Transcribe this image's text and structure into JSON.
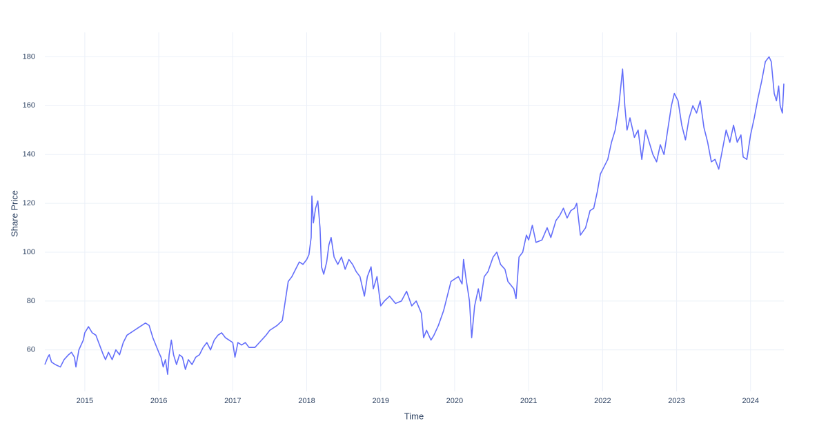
{
  "chart_data": {
    "type": "line",
    "x_label": "Time",
    "y_label": "Share Price",
    "xlim": [
      2014.46,
      2024.45
    ],
    "ylim": [
      43,
      190
    ],
    "xticks": [
      2015,
      2016,
      2017,
      2018,
      2019,
      2020,
      2021,
      2022,
      2023,
      2024
    ],
    "yticks": [
      60,
      80,
      100,
      120,
      140,
      160,
      180
    ],
    "grid": true,
    "series": [
      {
        "color": "#636efa",
        "x": [
          2014.46,
          2014.5,
          2014.52,
          2014.55,
          2014.6,
          2014.67,
          2014.72,
          2014.78,
          2014.82,
          2014.86,
          2014.88,
          2014.92,
          2014.98,
          2015.0,
          2015.05,
          2015.1,
          2015.15,
          2015.2,
          2015.25,
          2015.28,
          2015.32,
          2015.37,
          2015.42,
          2015.47,
          2015.52,
          2015.57,
          2015.62,
          2015.67,
          2015.72,
          2015.77,
          2015.82,
          2015.87,
          2015.92,
          2015.96,
          2016.0,
          2016.03,
          2016.06,
          2016.09,
          2016.12,
          2016.14,
          2016.17,
          2016.2,
          2016.24,
          2016.28,
          2016.32,
          2016.36,
          2016.4,
          2016.45,
          2016.5,
          2016.55,
          2016.6,
          2016.65,
          2016.7,
          2016.75,
          2016.8,
          2016.85,
          2016.9,
          2016.95,
          2017.0,
          2017.03,
          2017.07,
          2017.12,
          2017.17,
          2017.22,
          2017.3,
          2017.36,
          2017.45,
          2017.5,
          2017.6,
          2017.67,
          2017.7,
          2017.75,
          2017.8,
          2017.85,
          2017.9,
          2017.95,
          2018.0,
          2018.03,
          2018.06,
          2018.07,
          2018.09,
          2018.12,
          2018.15,
          2018.18,
          2018.2,
          2018.23,
          2018.27,
          2018.3,
          2018.33,
          2018.37,
          2018.42,
          2018.47,
          2018.52,
          2018.57,
          2018.62,
          2018.67,
          2018.72,
          2018.78,
          2018.82,
          2018.87,
          2018.9,
          2018.95,
          2019.0,
          2019.05,
          2019.12,
          2019.2,
          2019.28,
          2019.35,
          2019.42,
          2019.48,
          2019.55,
          2019.58,
          2019.62,
          2019.68,
          2019.72,
          2019.78,
          2019.85,
          2019.9,
          2019.95,
          2020.0,
          2020.05,
          2020.1,
          2020.12,
          2020.15,
          2020.2,
          2020.23,
          2020.27,
          2020.32,
          2020.35,
          2020.4,
          2020.45,
          2020.52,
          2020.57,
          2020.62,
          2020.68,
          2020.72,
          2020.8,
          2020.83,
          2020.87,
          2020.92,
          2020.97,
          2021.0,
          2021.05,
          2021.1,
          2021.18,
          2021.25,
          2021.3,
          2021.37,
          2021.42,
          2021.47,
          2021.52,
          2021.57,
          2021.62,
          2021.65,
          2021.7,
          2021.77,
          2021.83,
          2021.88,
          2021.93,
          2021.97,
          2022.02,
          2022.07,
          2022.12,
          2022.17,
          2022.22,
          2022.27,
          2022.3,
          2022.33,
          2022.37,
          2022.43,
          2022.48,
          2022.53,
          2022.58,
          2022.63,
          2022.68,
          2022.73,
          2022.78,
          2022.83,
          2022.88,
          2022.93,
          2022.97,
          2023.02,
          2023.07,
          2023.12,
          2023.17,
          2023.22,
          2023.27,
          2023.32,
          2023.37,
          2023.42,
          2023.47,
          2023.52,
          2023.57,
          2023.62,
          2023.67,
          2023.72,
          2023.77,
          2023.82,
          2023.87,
          2023.9,
          2023.95,
          2024.0,
          2024.05,
          2024.1,
          2024.15,
          2024.2,
          2024.25,
          2024.28,
          2024.32,
          2024.35,
          2024.38,
          2024.4,
          2024.43,
          2024.45
        ],
        "values": [
          54,
          57,
          58,
          55,
          54,
          53,
          56,
          58,
          59,
          57,
          53,
          60,
          64,
          67,
          69.5,
          67,
          66,
          62,
          58,
          56,
          59,
          56,
          60,
          58,
          63,
          66,
          67,
          68,
          69,
          70,
          71,
          70,
          65,
          62,
          59,
          57,
          53,
          56,
          50,
          58,
          64,
          58,
          54,
          58,
          57,
          52,
          56,
          54,
          57,
          58,
          61,
          63,
          60,
          64,
          66,
          67,
          65,
          64,
          63,
          57,
          63,
          62,
          63,
          61,
          61,
          63,
          66,
          68,
          70,
          72,
          78,
          88,
          90,
          93,
          96,
          95,
          97,
          99,
          106,
          123,
          112,
          118,
          121,
          110,
          94,
          91,
          96,
          103,
          106,
          98,
          95,
          98,
          93,
          97,
          95,
          92,
          90,
          82,
          90,
          94,
          85,
          90,
          78,
          80,
          82,
          79,
          80,
          84,
          78,
          80,
          75,
          65,
          68,
          64,
          66,
          70,
          76,
          82,
          88,
          89,
          90,
          87,
          97,
          90,
          80,
          65,
          78,
          85,
          80,
          90,
          92,
          98,
          100,
          95,
          93,
          88,
          85,
          81,
          98,
          100,
          107,
          105,
          111,
          104,
          105,
          110,
          106,
          113,
          115,
          118,
          114,
          117,
          118,
          120,
          107,
          110,
          117,
          118,
          125,
          132,
          135,
          138,
          145,
          150,
          160,
          175,
          160,
          150,
          155,
          147,
          150,
          138,
          150,
          145,
          140,
          137,
          144,
          140,
          150,
          160,
          165,
          162,
          152,
          146,
          155,
          160,
          157,
          162,
          151,
          145,
          137,
          138,
          134,
          142,
          150,
          145,
          152,
          145,
          148,
          139,
          138,
          148,
          155,
          163,
          170,
          178,
          180,
          178,
          165,
          162,
          168,
          160,
          157,
          169
        ]
      }
    ]
  }
}
